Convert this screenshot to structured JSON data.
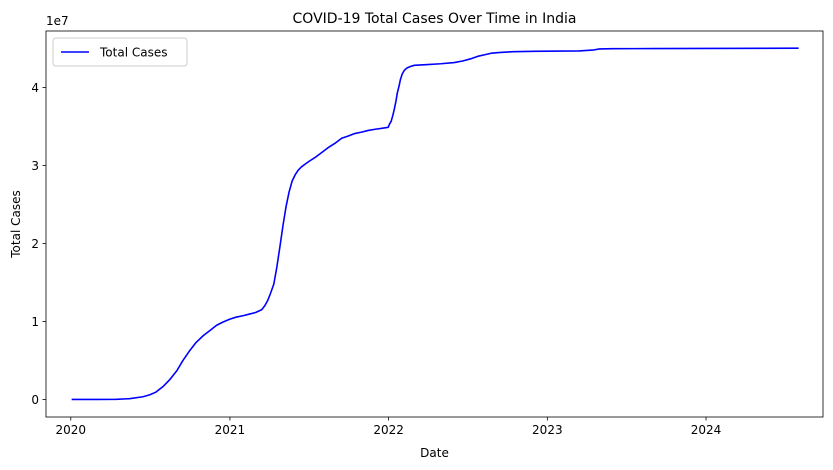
{
  "chart_data": {
    "type": "line",
    "title": "COVID-19 Total Cases Over Time in India",
    "xlabel": "Date",
    "ylabel": "Total Cases",
    "y_scale_label": "1e7",
    "x_axis": "date",
    "xlim": [
      "2019-11-05",
      "2024-09-26"
    ],
    "ylim": [
      -2250000,
      47250000
    ],
    "x_ticks": [
      {
        "label": "2020",
        "value": "2020-01-01"
      },
      {
        "label": "2021",
        "value": "2021-01-01"
      },
      {
        "label": "2022",
        "value": "2022-01-01"
      },
      {
        "label": "2023",
        "value": "2023-01-01"
      },
      {
        "label": "2024",
        "value": "2024-01-01"
      }
    ],
    "y_ticks": [
      {
        "label": "0",
        "value": 0
      },
      {
        "label": "1",
        "value": 10000000
      },
      {
        "label": "2",
        "value": 20000000
      },
      {
        "label": "3",
        "value": 30000000
      },
      {
        "label": "4",
        "value": 40000000
      }
    ],
    "grid": false,
    "legend": {
      "position": "top-left"
    },
    "series": [
      {
        "name": "Total Cases",
        "color": "#0000ff",
        "points": [
          [
            "2020-01-03",
            0
          ],
          [
            "2020-03-01",
            5000
          ],
          [
            "2020-04-15",
            20000
          ],
          [
            "2020-05-15",
            100000
          ],
          [
            "2020-06-15",
            350000
          ],
          [
            "2020-07-01",
            600000
          ],
          [
            "2020-07-15",
            950000
          ],
          [
            "2020-08-01",
            1700000
          ],
          [
            "2020-08-15",
            2500000
          ],
          [
            "2020-09-01",
            3700000
          ],
          [
            "2020-09-15",
            5000000
          ],
          [
            "2020-10-01",
            6300000
          ],
          [
            "2020-10-15",
            7300000
          ],
          [
            "2020-11-01",
            8200000
          ],
          [
            "2020-11-15",
            8800000
          ],
          [
            "2020-12-01",
            9500000
          ],
          [
            "2020-12-15",
            9900000
          ],
          [
            "2021-01-01",
            10300000
          ],
          [
            "2021-01-15",
            10550000
          ],
          [
            "2021-02-01",
            10750000
          ],
          [
            "2021-02-15",
            10950000
          ],
          [
            "2021-03-01",
            11150000
          ],
          [
            "2021-03-15",
            11500000
          ],
          [
            "2021-03-22",
            12000000
          ],
          [
            "2021-03-29",
            12700000
          ],
          [
            "2021-04-05",
            13700000
          ],
          [
            "2021-04-12",
            14800000
          ],
          [
            "2021-04-19",
            17000000
          ],
          [
            "2021-04-26",
            19600000
          ],
          [
            "2021-05-03",
            22300000
          ],
          [
            "2021-05-10",
            24700000
          ],
          [
            "2021-05-17",
            26600000
          ],
          [
            "2021-05-24",
            28000000
          ],
          [
            "2021-05-31",
            28800000
          ],
          [
            "2021-06-07",
            29400000
          ],
          [
            "2021-06-14",
            29800000
          ],
          [
            "2021-06-21",
            30100000
          ],
          [
            "2021-07-01",
            30500000
          ],
          [
            "2021-07-15",
            31000000
          ],
          [
            "2021-08-01",
            31700000
          ],
          [
            "2021-08-15",
            32300000
          ],
          [
            "2021-09-01",
            32900000
          ],
          [
            "2021-09-15",
            33500000
          ],
          [
            "2021-10-01",
            33800000
          ],
          [
            "2021-10-15",
            34100000
          ],
          [
            "2021-11-01",
            34300000
          ],
          [
            "2021-11-15",
            34500000
          ],
          [
            "2021-12-01",
            34650000
          ],
          [
            "2021-12-20",
            34800000
          ],
          [
            "2021-12-31",
            34900000
          ],
          [
            "2022-01-03",
            35300000
          ],
          [
            "2022-01-07",
            35700000
          ],
          [
            "2022-01-11",
            36500000
          ],
          [
            "2022-01-14",
            37200000
          ],
          [
            "2022-01-18",
            38300000
          ],
          [
            "2022-01-21",
            39300000
          ],
          [
            "2022-01-25",
            40200000
          ],
          [
            "2022-01-28",
            41000000
          ],
          [
            "2022-02-01",
            41700000
          ],
          [
            "2022-02-06",
            42200000
          ],
          [
            "2022-02-12",
            42500000
          ],
          [
            "2022-02-20",
            42700000
          ],
          [
            "2022-03-01",
            42850000
          ],
          [
            "2022-04-01",
            42950000
          ],
          [
            "2022-05-01",
            43050000
          ],
          [
            "2022-06-01",
            43200000
          ],
          [
            "2022-06-20",
            43400000
          ],
          [
            "2022-07-10",
            43700000
          ],
          [
            "2022-07-25",
            44000000
          ],
          [
            "2022-08-10",
            44200000
          ],
          [
            "2022-08-25",
            44400000
          ],
          [
            "2022-09-15",
            44500000
          ],
          [
            "2022-10-15",
            44600000
          ],
          [
            "2022-12-01",
            44650000
          ],
          [
            "2023-02-01",
            44680000
          ],
          [
            "2023-03-15",
            44690000
          ],
          [
            "2023-04-15",
            44800000
          ],
          [
            "2023-05-01",
            44950000
          ],
          [
            "2023-06-01",
            44985000
          ],
          [
            "2023-09-01",
            44995000
          ],
          [
            "2024-01-01",
            45020000
          ],
          [
            "2024-08-01",
            45040000
          ]
        ]
      }
    ]
  }
}
